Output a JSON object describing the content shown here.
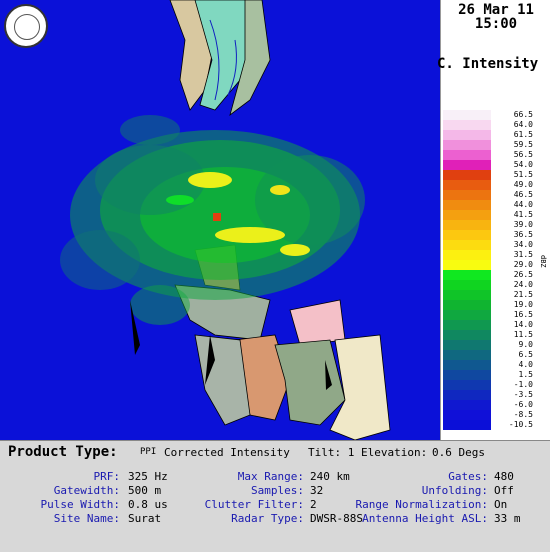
{
  "header": {
    "date": "26 Mar 11",
    "time": "15:00",
    "product_title": "C. Intensity"
  },
  "legend": {
    "unit": "dBZ",
    "levels": [
      {
        "label": "66.5",
        "color": "#f8f0f8"
      },
      {
        "label": "64.0",
        "color": "#f8d8f0"
      },
      {
        "label": "61.5",
        "color": "#f4b8e8"
      },
      {
        "label": "59.5",
        "color": "#f090dc"
      },
      {
        "label": "56.5",
        "color": "#ec60d0"
      },
      {
        "label": "54.0",
        "color": "#e020b8"
      },
      {
        "label": "51.5",
        "color": "#e04010"
      },
      {
        "label": "49.0",
        "color": "#e85c10"
      },
      {
        "label": "46.5",
        "color": "#ec7410"
      },
      {
        "label": "44.0",
        "color": "#f08c10"
      },
      {
        "label": "41.5",
        "color": "#f4a010"
      },
      {
        "label": "39.0",
        "color": "#f8b410"
      },
      {
        "label": "36.5",
        "color": "#fcc810"
      },
      {
        "label": "34.0",
        "color": "#fcdc10"
      },
      {
        "label": "31.5",
        "color": "#fcf010"
      },
      {
        "label": "29.0",
        "color": "#f8fc10"
      },
      {
        "label": "26.5",
        "color": "#10e820"
      },
      {
        "label": "24.0",
        "color": "#10d420"
      },
      {
        "label": "21.5",
        "color": "#10c428"
      },
      {
        "label": "19.0",
        "color": "#10b430"
      },
      {
        "label": "16.5",
        "color": "#10a840"
      },
      {
        "label": "14.0",
        "color": "#109850"
      },
      {
        "label": "11.5",
        "color": "#108860"
      },
      {
        "label": "9.0",
        "color": "#107870"
      },
      {
        "label": "6.5",
        "color": "#106880"
      },
      {
        "label": "4.0",
        "color": "#105890"
      },
      {
        "label": "1.5",
        "color": "#1048a0"
      },
      {
        "label": "-1.0",
        "color": "#1038b0"
      },
      {
        "label": "-3.5",
        "color": "#1028c0"
      },
      {
        "label": "-6.0",
        "color": "#1018d0"
      },
      {
        "label": "-8.5",
        "color": "#1010d8"
      },
      {
        "label": "-10.5",
        "color": "#0b0fd8"
      }
    ]
  },
  "info": {
    "product_type_label": "Product Type:",
    "product_type_prefix": "PPI",
    "product_type_value": "Corrected Intensity",
    "tilt": "Tilt: 1 Elevation:",
    "elevation": "0.6 Degs",
    "prf_label": "PRF:",
    "prf": "325 Hz",
    "gatewidth_label": "Gatewidth:",
    "gatewidth": "500 m",
    "pulse_width_label": "Pulse Width:",
    "pulse_width": "0.8 us",
    "site_name_label": "Site Name:",
    "site_name": "Surat",
    "max_range_label": "Max Range:",
    "max_range": "240 km",
    "samples_label": "Samples:",
    "samples": "32",
    "clutter_filter_label": "Clutter Filter:",
    "clutter_filter": "2",
    "radar_type_label": "Radar Type:",
    "radar_type": "DWSR-88S",
    "gates_label": "Gates:",
    "gates": "480",
    "unfolding_label": "Unfolding:",
    "unfolding": "Off",
    "range_norm_label": "Range Normalization:",
    "range_norm": "On",
    "antenna_label": "Antenna Height ASL:",
    "antenna": "33 m"
  }
}
